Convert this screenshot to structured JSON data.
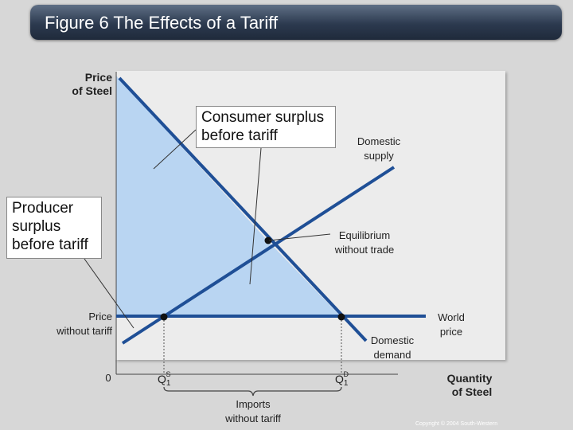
{
  "title": "Figure 6 The Effects of a Tariff",
  "labels": {
    "y_axis_line1": "Price",
    "y_axis_line2": "of Steel",
    "x_axis_line1": "Quantity",
    "x_axis_line2": "of Steel",
    "origin": "0",
    "domestic_supply_line1": "Domestic",
    "domestic_supply_line2": "supply",
    "domestic_demand_line1": "Domestic",
    "domestic_demand_line2": "demand",
    "equilibrium_line1": "Equilibrium",
    "equilibrium_line2": "without trade",
    "price_without_tariff_line1": "Price",
    "price_without_tariff_line2": "without tariff",
    "world_price_line1": "World",
    "world_price_line2": "price",
    "q_supply": "Q",
    "q_supply_sub": "1",
    "q_supply_sup": "S",
    "q_demand": "Q",
    "q_demand_sub": "1",
    "q_demand_sup": "D",
    "imports_line1": "Imports",
    "imports_line2": "without tariff"
  },
  "callouts": {
    "consumer_surplus_line1": "Consumer surplus",
    "consumer_surplus_line2": "before tariff",
    "producer_surplus_line1": "Producer",
    "producer_surplus_line2": "surplus",
    "producer_surplus_line3": "before tariff"
  },
  "copyright": "Copyright © 2004 South-Western",
  "colors": {
    "curve": "#1f4f96",
    "surplus_fill": "#b9d5f2",
    "background": "#d7d7d7",
    "title_bar": "#2c3a4f"
  }
}
